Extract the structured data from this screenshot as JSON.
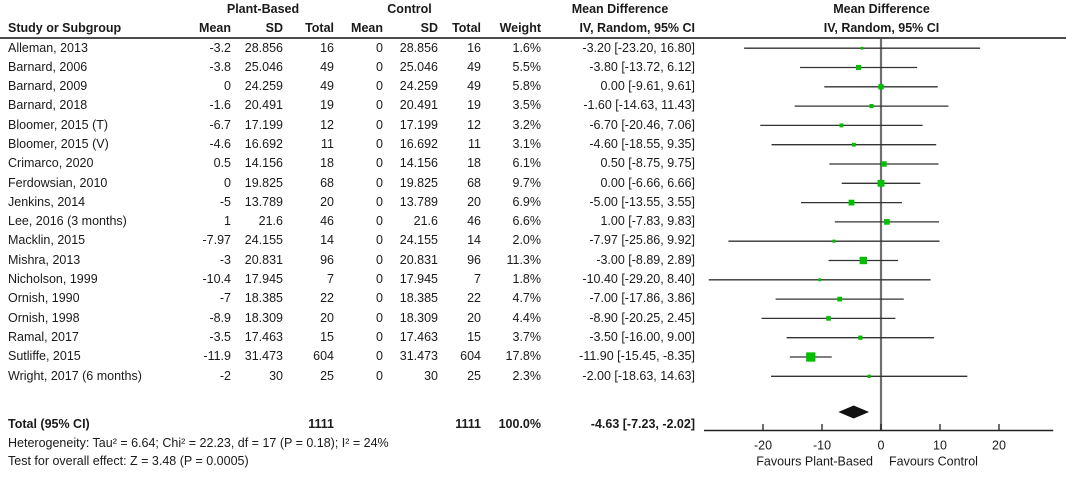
{
  "chart_data": {
    "type": "forest",
    "effect_measure_title": "Mean Difference",
    "effect_measure_sub": "IV, Random, 95% CI",
    "group_labels": {
      "treatment": "Plant-Based",
      "control": "Control"
    },
    "columns": {
      "study": "Study or Subgroup",
      "mean": "Mean",
      "sd": "SD",
      "total": "Total",
      "weight": "Weight"
    },
    "studies": [
      {
        "study": "Alleman, 2013",
        "pb": {
          "mean": "-3.2",
          "sd": "28.856",
          "total": "16"
        },
        "ctrl": {
          "mean": "0",
          "sd": "28.856",
          "total": "16"
        },
        "weight": "1.6%",
        "md": "-3.20 [-23.20, 16.80]",
        "est": -3.2,
        "ci_low": -23.2,
        "ci_high": 16.8,
        "weight_pct": 1.6
      },
      {
        "study": "Barnard, 2006",
        "pb": {
          "mean": "-3.8",
          "sd": "25.046",
          "total": "49"
        },
        "ctrl": {
          "mean": "0",
          "sd": "25.046",
          "total": "49"
        },
        "weight": "5.5%",
        "md": "-3.80 [-13.72, 6.12]",
        "est": -3.8,
        "ci_low": -13.72,
        "ci_high": 6.12,
        "weight_pct": 5.5
      },
      {
        "study": "Barnard, 2009",
        "pb": {
          "mean": "0",
          "sd": "24.259",
          "total": "49"
        },
        "ctrl": {
          "mean": "0",
          "sd": "24.259",
          "total": "49"
        },
        "weight": "5.8%",
        "md": "0.00 [-9.61, 9.61]",
        "est": 0,
        "ci_low": -9.61,
        "ci_high": 9.61,
        "weight_pct": 5.8
      },
      {
        "study": "Barnard, 2018",
        "pb": {
          "mean": "-1.6",
          "sd": "20.491",
          "total": "19"
        },
        "ctrl": {
          "mean": "0",
          "sd": "20.491",
          "total": "19"
        },
        "weight": "3.5%",
        "md": "-1.60 [-14.63, 11.43]",
        "est": -1.6,
        "ci_low": -14.63,
        "ci_high": 11.43,
        "weight_pct": 3.5
      },
      {
        "study": "Bloomer, 2015 (T)",
        "pb": {
          "mean": "-6.7",
          "sd": "17.199",
          "total": "12"
        },
        "ctrl": {
          "mean": "0",
          "sd": "17.199",
          "total": "12"
        },
        "weight": "3.2%",
        "md": "-6.70 [-20.46, 7.06]",
        "est": -6.7,
        "ci_low": -20.46,
        "ci_high": 7.06,
        "weight_pct": 3.2
      },
      {
        "study": "Bloomer, 2015 (V)",
        "pb": {
          "mean": "-4.6",
          "sd": "16.692",
          "total": "11"
        },
        "ctrl": {
          "mean": "0",
          "sd": "16.692",
          "total": "11"
        },
        "weight": "3.1%",
        "md": "-4.60 [-18.55, 9.35]",
        "est": -4.6,
        "ci_low": -18.55,
        "ci_high": 9.35,
        "weight_pct": 3.1
      },
      {
        "study": "Crimarco, 2020",
        "pb": {
          "mean": "0.5",
          "sd": "14.156",
          "total": "18"
        },
        "ctrl": {
          "mean": "0",
          "sd": "14.156",
          "total": "18"
        },
        "weight": "6.1%",
        "md": "0.50 [-8.75, 9.75]",
        "est": 0.5,
        "ci_low": -8.75,
        "ci_high": 9.75,
        "weight_pct": 6.1
      },
      {
        "study": "Ferdowsian, 2010",
        "pb": {
          "mean": "0",
          "sd": "19.825",
          "total": "68"
        },
        "ctrl": {
          "mean": "0",
          "sd": "19.825",
          "total": "68"
        },
        "weight": "9.7%",
        "md": "0.00 [-6.66, 6.66]",
        "est": 0,
        "ci_low": -6.66,
        "ci_high": 6.66,
        "weight_pct": 9.7
      },
      {
        "study": "Jenkins, 2014",
        "pb": {
          "mean": "-5",
          "sd": "13.789",
          "total": "20"
        },
        "ctrl": {
          "mean": "0",
          "sd": "13.789",
          "total": "20"
        },
        "weight": "6.9%",
        "md": "-5.00 [-13.55, 3.55]",
        "est": -5,
        "ci_low": -13.55,
        "ci_high": 3.55,
        "weight_pct": 6.9
      },
      {
        "study": "Lee, 2016 (3 months)",
        "pb": {
          "mean": "1",
          "sd": "21.6",
          "total": "46"
        },
        "ctrl": {
          "mean": "0",
          "sd": "21.6",
          "total": "46"
        },
        "weight": "6.6%",
        "md": "1.00 [-7.83, 9.83]",
        "est": 1,
        "ci_low": -7.83,
        "ci_high": 9.83,
        "weight_pct": 6.6
      },
      {
        "study": "Macklin, 2015",
        "pb": {
          "mean": "-7.97",
          "sd": "24.155",
          "total": "14"
        },
        "ctrl": {
          "mean": "0",
          "sd": "24.155",
          "total": "14"
        },
        "weight": "2.0%",
        "md": "-7.97 [-25.86, 9.92]",
        "est": -7.97,
        "ci_low": -25.86,
        "ci_high": 9.92,
        "weight_pct": 2.0
      },
      {
        "study": "Mishra, 2013",
        "pb": {
          "mean": "-3",
          "sd": "20.831",
          "total": "96"
        },
        "ctrl": {
          "mean": "0",
          "sd": "20.831",
          "total": "96"
        },
        "weight": "11.3%",
        "md": "-3.00 [-8.89, 2.89]",
        "est": -3,
        "ci_low": -8.89,
        "ci_high": 2.89,
        "weight_pct": 11.3
      },
      {
        "study": "Nicholson, 1999",
        "pb": {
          "mean": "-10.4",
          "sd": "17.945",
          "total": "7"
        },
        "ctrl": {
          "mean": "0",
          "sd": "17.945",
          "total": "7"
        },
        "weight": "1.8%",
        "md": "-10.40 [-29.20, 8.40]",
        "est": -10.4,
        "ci_low": -29.2,
        "ci_high": 8.4,
        "weight_pct": 1.8
      },
      {
        "study": "Ornish, 1990",
        "pb": {
          "mean": "-7",
          "sd": "18.385",
          "total": "22"
        },
        "ctrl": {
          "mean": "0",
          "sd": "18.385",
          "total": "22"
        },
        "weight": "4.7%",
        "md": "-7.00 [-17.86, 3.86]",
        "est": -7,
        "ci_low": -17.86,
        "ci_high": 3.86,
        "weight_pct": 4.7
      },
      {
        "study": "Ornish, 1998",
        "pb": {
          "mean": "-8.9",
          "sd": "18.309",
          "total": "20"
        },
        "ctrl": {
          "mean": "0",
          "sd": "18.309",
          "total": "20"
        },
        "weight": "4.4%",
        "md": "-8.90 [-20.25, 2.45]",
        "est": -8.9,
        "ci_low": -20.25,
        "ci_high": 2.45,
        "weight_pct": 4.4
      },
      {
        "study": "Ramal, 2017",
        "pb": {
          "mean": "-3.5",
          "sd": "17.463",
          "total": "15"
        },
        "ctrl": {
          "mean": "0",
          "sd": "17.463",
          "total": "15"
        },
        "weight": "3.7%",
        "md": "-3.50 [-16.00, 9.00]",
        "est": -3.5,
        "ci_low": -16.0,
        "ci_high": 9.0,
        "weight_pct": 3.7
      },
      {
        "study": "Sutliffe, 2015",
        "pb": {
          "mean": "-11.9",
          "sd": "31.473",
          "total": "604"
        },
        "ctrl": {
          "mean": "0",
          "sd": "31.473",
          "total": "604"
        },
        "weight": "17.8%",
        "md": "-11.90 [-15.45, -8.35]",
        "est": -11.9,
        "ci_low": -15.45,
        "ci_high": -8.35,
        "weight_pct": 17.8
      },
      {
        "study": "Wright, 2017 (6 months)",
        "pb": {
          "mean": "-2",
          "sd": "30",
          "total": "25"
        },
        "ctrl": {
          "mean": "0",
          "sd": "30",
          "total": "25"
        },
        "weight": "2.3%",
        "md": "-2.00 [-18.63, 14.63]",
        "est": -2,
        "ci_low": -18.63,
        "ci_high": 14.63,
        "weight_pct": 2.3
      }
    ],
    "total": {
      "label": "Total (95% CI)",
      "pb_total": "1111",
      "ctrl_total": "1111",
      "weight": "100.0%",
      "md": "-4.63 [-7.23, -2.02]",
      "est": -4.63,
      "ci_low": -7.23,
      "ci_high": -2.02
    },
    "heterogeneity": "Heterogeneity: Tau² = 6.64; Chi² = 22.23, df = 17 (P = 0.18); I² = 24%",
    "overall_test": "Test for overall effect: Z = 3.48 (P = 0.0005)",
    "axis": {
      "ticks": [
        -20,
        -10,
        0,
        10,
        20
      ],
      "xmin": -30,
      "xmax": 29.2,
      "favours_left": "Favours Plant-Based",
      "favours_right": "Favours Control"
    }
  },
  "colors": {
    "square": "#00bf00",
    "diamond": "#111111",
    "ci_line": "#333333",
    "zero_line": "#6f6f6f",
    "axis": "#222222",
    "text": "#1a1a1a",
    "header_line": "#111111"
  }
}
